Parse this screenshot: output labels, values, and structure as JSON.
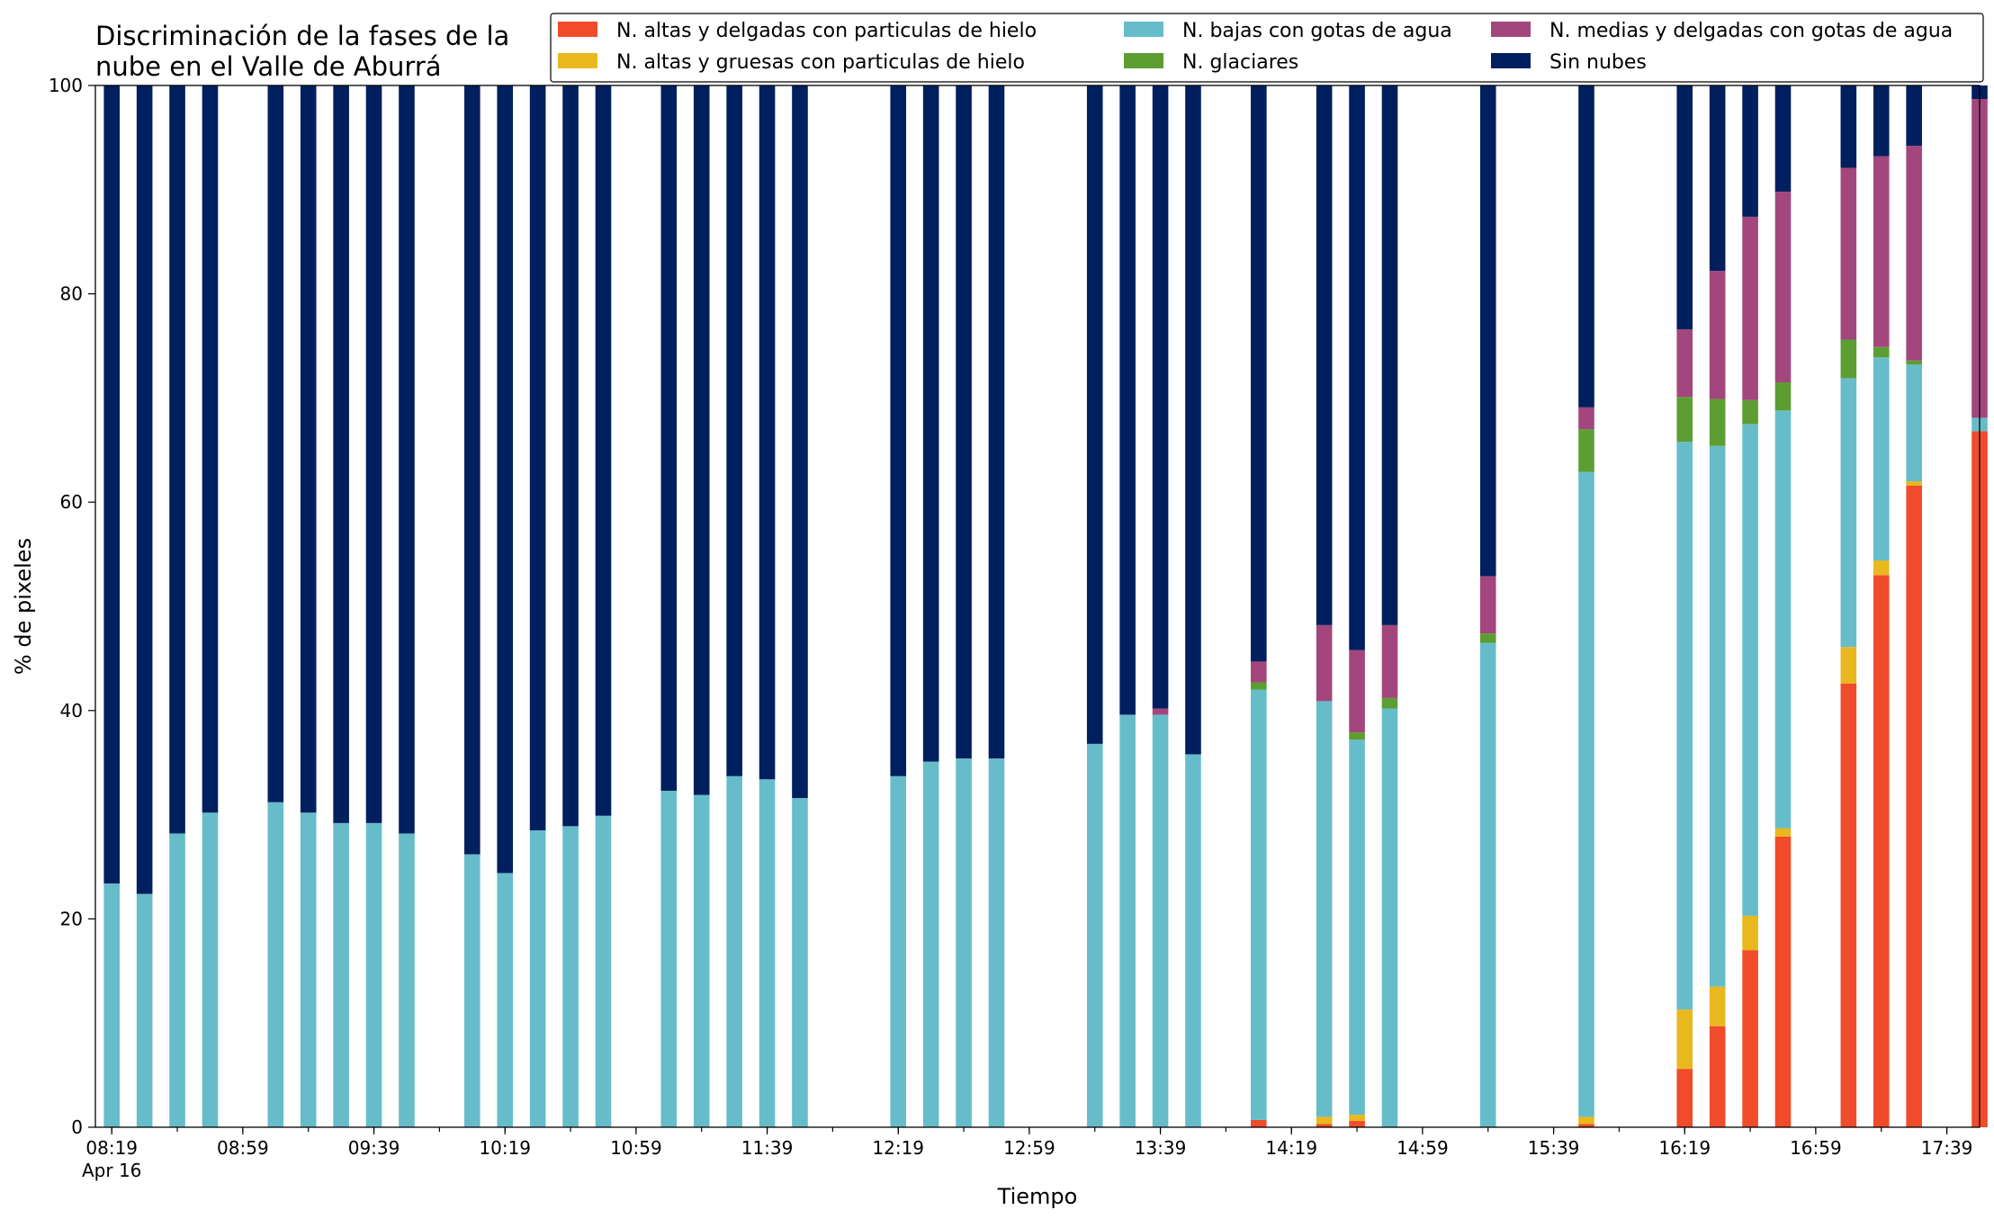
{
  "chart_data": {
    "type": "bar",
    "stacked": true,
    "title_lines": [
      "Discriminación de la fases de la",
      "nube en el Valle de Aburrá"
    ],
    "xlabel": "Tiempo",
    "ylabel": "% de pixeles",
    "ylim": [
      0,
      100
    ],
    "yticks": [
      0,
      20,
      40,
      60,
      80,
      100
    ],
    "legend_position": "top-right",
    "x_range": [
      "08:14",
      "17:49"
    ],
    "x_tick_labels": [
      {
        "t": "08:19",
        "label": "08:19",
        "sublabel": "Apr 16"
      },
      {
        "t": "08:59",
        "label": "08:59"
      },
      {
        "t": "09:39",
        "label": "09:39"
      },
      {
        "t": "10:19",
        "label": "10:19"
      },
      {
        "t": "10:59",
        "label": "10:59"
      },
      {
        "t": "11:39",
        "label": "11:39"
      },
      {
        "t": "12:19",
        "label": "12:19"
      },
      {
        "t": "12:59",
        "label": "12:59"
      },
      {
        "t": "13:39",
        "label": "13:39"
      },
      {
        "t": "14:19",
        "label": "14:19"
      },
      {
        "t": "14:59",
        "label": "14:59"
      },
      {
        "t": "15:39",
        "label": "15:39"
      },
      {
        "t": "16:19",
        "label": "16:19"
      },
      {
        "t": "16:59",
        "label": "16:59"
      },
      {
        "t": "17:39",
        "label": "17:39"
      }
    ],
    "legend": [
      {
        "key": "alt_del",
        "label": "N. altas y delgadas con particulas de hielo",
        "color": "#f04b2a"
      },
      {
        "key": "alt_gru",
        "label": "N. altas y gruesas con particulas de hielo",
        "color": "#e8b81e"
      },
      {
        "key": "bajas",
        "label": "N. bajas con gotas de agua",
        "color": "#66bdc9"
      },
      {
        "key": "glac",
        "label": "N. glaciares",
        "color": "#5c9e32"
      },
      {
        "key": "medias",
        "label": "N. medias y delgadas con gotas de agua",
        "color": "#a3467d"
      },
      {
        "key": "sin",
        "label": "Sin nubes",
        "color": "#001f5e"
      }
    ],
    "stack_order": [
      "alt_del",
      "alt_gru",
      "bajas",
      "glac",
      "medias",
      "sin"
    ],
    "bars": [
      {
        "t": "08:19",
        "alt_del": 0,
        "alt_gru": 0,
        "bajas": 23.4,
        "glac": 0,
        "medias": 0,
        "sin": 76.6
      },
      {
        "t": "08:29",
        "alt_del": 0,
        "alt_gru": 0,
        "bajas": 22.4,
        "glac": 0,
        "medias": 0,
        "sin": 77.6
      },
      {
        "t": "08:39",
        "alt_del": 0,
        "alt_gru": 0,
        "bajas": 28.2,
        "glac": 0,
        "medias": 0,
        "sin": 71.8
      },
      {
        "t": "08:49",
        "alt_del": 0,
        "alt_gru": 0,
        "bajas": 30.2,
        "glac": 0,
        "medias": 0,
        "sin": 69.8
      },
      {
        "t": "09:09",
        "alt_del": 0,
        "alt_gru": 0,
        "bajas": 31.2,
        "glac": 0,
        "medias": 0,
        "sin": 68.8
      },
      {
        "t": "09:19",
        "alt_del": 0,
        "alt_gru": 0,
        "bajas": 30.2,
        "glac": 0,
        "medias": 0,
        "sin": 69.8
      },
      {
        "t": "09:29",
        "alt_del": 0,
        "alt_gru": 0,
        "bajas": 29.2,
        "glac": 0,
        "medias": 0,
        "sin": 70.8
      },
      {
        "t": "09:39",
        "alt_del": 0,
        "alt_gru": 0,
        "bajas": 29.2,
        "glac": 0,
        "medias": 0,
        "sin": 70.8
      },
      {
        "t": "09:49",
        "alt_del": 0,
        "alt_gru": 0,
        "bajas": 28.2,
        "glac": 0,
        "medias": 0,
        "sin": 71.8
      },
      {
        "t": "10:09",
        "alt_del": 0,
        "alt_gru": 0,
        "bajas": 26.2,
        "glac": 0,
        "medias": 0,
        "sin": 73.8
      },
      {
        "t": "10:19",
        "alt_del": 0,
        "alt_gru": 0,
        "bajas": 24.4,
        "glac": 0,
        "medias": 0,
        "sin": 75.6
      },
      {
        "t": "10:29",
        "alt_del": 0,
        "alt_gru": 0,
        "bajas": 28.5,
        "glac": 0,
        "medias": 0,
        "sin": 71.5
      },
      {
        "t": "10:39",
        "alt_del": 0,
        "alt_gru": 0,
        "bajas": 28.9,
        "glac": 0,
        "medias": 0,
        "sin": 71.1
      },
      {
        "t": "10:49",
        "alt_del": 0,
        "alt_gru": 0,
        "bajas": 29.9,
        "glac": 0,
        "medias": 0,
        "sin": 70.1
      },
      {
        "t": "11:09",
        "alt_del": 0,
        "alt_gru": 0,
        "bajas": 32.3,
        "glac": 0,
        "medias": 0,
        "sin": 67.7
      },
      {
        "t": "11:19",
        "alt_del": 0,
        "alt_gru": 0,
        "bajas": 31.9,
        "glac": 0,
        "medias": 0,
        "sin": 68.1
      },
      {
        "t": "11:29",
        "alt_del": 0,
        "alt_gru": 0,
        "bajas": 33.7,
        "glac": 0,
        "medias": 0,
        "sin": 66.3
      },
      {
        "t": "11:39",
        "alt_del": 0,
        "alt_gru": 0,
        "bajas": 33.4,
        "glac": 0,
        "medias": 0,
        "sin": 66.6
      },
      {
        "t": "11:49",
        "alt_del": 0,
        "alt_gru": 0,
        "bajas": 31.6,
        "glac": 0,
        "medias": 0,
        "sin": 68.4
      },
      {
        "t": "12:19",
        "alt_del": 0,
        "alt_gru": 0,
        "bajas": 33.7,
        "glac": 0,
        "medias": 0,
        "sin": 66.3
      },
      {
        "t": "12:29",
        "alt_del": 0,
        "alt_gru": 0,
        "bajas": 35.1,
        "glac": 0,
        "medias": 0,
        "sin": 64.9
      },
      {
        "t": "12:39",
        "alt_del": 0,
        "alt_gru": 0,
        "bajas": 35.4,
        "glac": 0,
        "medias": 0,
        "sin": 64.6
      },
      {
        "t": "12:49",
        "alt_del": 0,
        "alt_gru": 0,
        "bajas": 35.4,
        "glac": 0,
        "medias": 0,
        "sin": 64.6
      },
      {
        "t": "13:19",
        "alt_del": 0,
        "alt_gru": 0,
        "bajas": 36.8,
        "glac": 0,
        "medias": 0,
        "sin": 63.2
      },
      {
        "t": "13:29",
        "alt_del": 0,
        "alt_gru": 0,
        "bajas": 39.6,
        "glac": 0,
        "medias": 0,
        "sin": 60.4
      },
      {
        "t": "13:39",
        "alt_del": 0,
        "alt_gru": 0,
        "bajas": 39.6,
        "glac": 0,
        "medias": 0.6,
        "sin": 59.8
      },
      {
        "t": "13:49",
        "alt_del": 0,
        "alt_gru": 0,
        "bajas": 35.8,
        "glac": 0,
        "medias": 0,
        "sin": 64.2
      },
      {
        "t": "14:09",
        "alt_del": 0.7,
        "alt_gru": 0,
        "bajas": 41.3,
        "glac": 0.7,
        "medias": 2.0,
        "sin": 55.3
      },
      {
        "t": "14:29",
        "alt_del": 0.3,
        "alt_gru": 0.7,
        "bajas": 39.9,
        "glac": 0,
        "medias": 7.3,
        "sin": 51.8
      },
      {
        "t": "14:39",
        "alt_del": 0.6,
        "alt_gru": 0.6,
        "bajas": 36.0,
        "glac": 0.7,
        "medias": 7.9,
        "sin": 54.2
      },
      {
        "t": "14:49",
        "alt_del": 0,
        "alt_gru": 0,
        "bajas": 40.2,
        "glac": 1.0,
        "medias": 7.0,
        "sin": 51.8
      },
      {
        "t": "15:19",
        "alt_del": 0,
        "alt_gru": 0,
        "bajas": 46.5,
        "glac": 0.9,
        "medias": 5.5,
        "sin": 47.1
      },
      {
        "t": "15:49",
        "alt_del": 0.3,
        "alt_gru": 0.7,
        "bajas": 61.9,
        "glac": 4.1,
        "medias": 2.1,
        "sin": 30.9
      },
      {
        "t": "16:19",
        "alt_del": 5.6,
        "alt_gru": 5.7,
        "bajas": 54.5,
        "glac": 4.3,
        "medias": 6.5,
        "sin": 23.4
      },
      {
        "t": "16:29",
        "alt_del": 9.7,
        "alt_gru": 3.8,
        "bajas": 51.9,
        "glac": 4.5,
        "medias": 12.3,
        "sin": 17.8
      },
      {
        "t": "16:39",
        "alt_del": 17.0,
        "alt_gru": 3.3,
        "bajas": 47.2,
        "glac": 2.3,
        "medias": 17.6,
        "sin": 12.6
      },
      {
        "t": "16:49",
        "alt_del": 27.9,
        "alt_gru": 0.8,
        "bajas": 40.1,
        "glac": 2.7,
        "medias": 18.3,
        "sin": 10.2
      },
      {
        "t": "17:09",
        "alt_del": 42.6,
        "alt_gru": 3.5,
        "bajas": 25.8,
        "glac": 3.7,
        "medias": 16.5,
        "sin": 7.9
      },
      {
        "t": "17:19",
        "alt_del": 53.0,
        "alt_gru": 1.4,
        "bajas": 19.5,
        "glac": 1.0,
        "medias": 18.3,
        "sin": 6.8
      },
      {
        "t": "17:29",
        "alt_del": 61.6,
        "alt_gru": 0.4,
        "bajas": 11.2,
        "glac": 0.4,
        "medias": 20.6,
        "sin": 5.8
      },
      {
        "t": "17:49",
        "alt_del": 66.8,
        "alt_gru": 0,
        "bajas": 1.3,
        "glac": 0,
        "medias": 30.6,
        "sin": 1.3
      }
    ]
  }
}
